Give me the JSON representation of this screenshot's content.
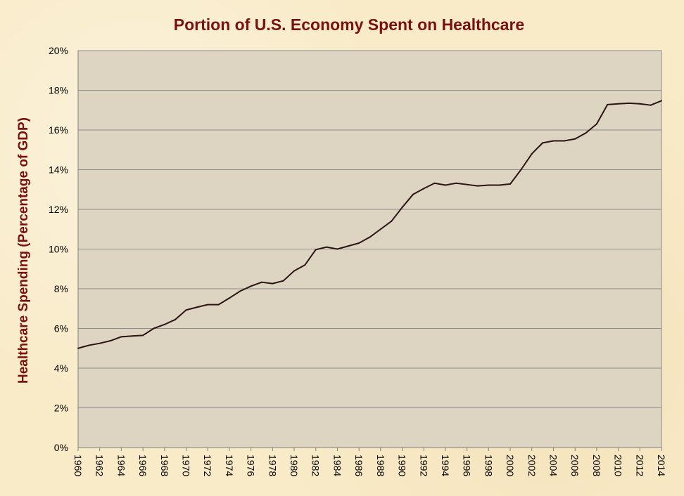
{
  "chart_data": {
    "type": "line",
    "title": "Portion of U.S. Economy Spent on Healthcare",
    "xlabel": "",
    "ylabel": "Healthcare Spending (Percentage of GDP)",
    "xlim": [
      1960,
      2014
    ],
    "ylim": [
      0,
      20
    ],
    "y_ticks": [
      "0%",
      "2%",
      "4%",
      "6%",
      "8%",
      "10%",
      "12%",
      "14%",
      "16%",
      "18%",
      "20%"
    ],
    "x_ticks": [
      "1960",
      "1962",
      "1964",
      "1966",
      "1968",
      "1970",
      "1972",
      "1974",
      "1976",
      "1978",
      "1980",
      "1982",
      "1984",
      "1986",
      "1988",
      "1990",
      "1992",
      "1994",
      "1996",
      "1998",
      "2000",
      "2002",
      "2004",
      "2006",
      "2008",
      "2010",
      "2012",
      "2014"
    ],
    "grid": true,
    "legend": "none",
    "colors": {
      "line": "#2b1414",
      "plot_bg": "#ddd5c1",
      "title": "#7b1010",
      "ylabel": "#7b1010",
      "grid": "#8c8c8c"
    },
    "series": [
      {
        "x": [
          1960,
          1961,
          1962,
          1963,
          1964,
          1965,
          1966,
          1967,
          1968,
          1969,
          1970,
          1971,
          1972,
          1973,
          1974,
          1975,
          1976,
          1977,
          1978,
          1979,
          1980,
          1981,
          1982,
          1983,
          1984,
          1985,
          1986,
          1987,
          1988,
          1989,
          1990,
          1991,
          1992,
          1993,
          1994,
          1995,
          1996,
          1997,
          1998,
          1999,
          2000,
          2001,
          2002,
          2003,
          2004,
          2005,
          2006,
          2007,
          2008,
          2009,
          2010,
          2011,
          2012,
          2013,
          2014
        ],
        "values": [
          5.0,
          5.15,
          5.25,
          5.38,
          5.58,
          5.62,
          5.65,
          6.0,
          6.2,
          6.45,
          6.93,
          7.07,
          7.2,
          7.2,
          7.53,
          7.88,
          8.13,
          8.33,
          8.26,
          8.4,
          8.9,
          9.2,
          9.97,
          10.1,
          10.0,
          10.15,
          10.3,
          10.6,
          11.0,
          11.4,
          12.1,
          12.75,
          13.05,
          13.32,
          13.22,
          13.32,
          13.25,
          13.18,
          13.22,
          13.22,
          13.28,
          14.0,
          14.8,
          15.35,
          15.45,
          15.45,
          15.55,
          15.85,
          16.3,
          17.28,
          17.32,
          17.35,
          17.32,
          17.25,
          17.47
        ]
      }
    ]
  }
}
